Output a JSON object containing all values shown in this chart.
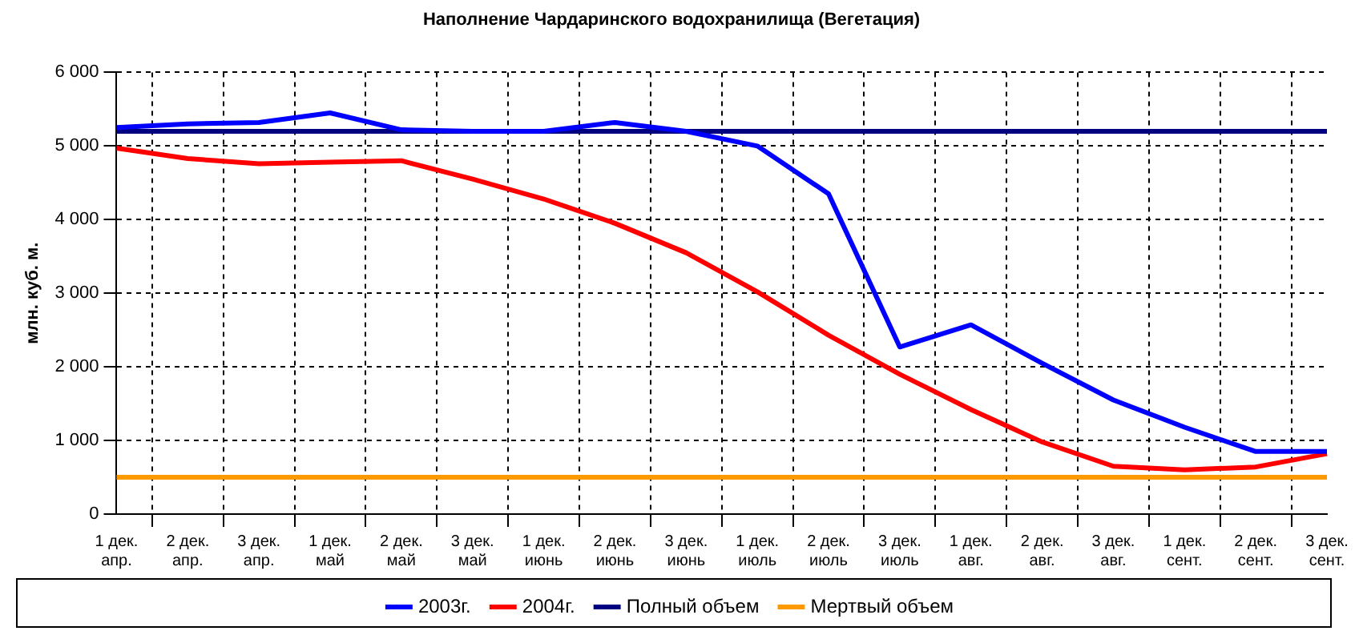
{
  "chart_data": {
    "type": "line",
    "title": "Наполнение Чардаринского водохранилища (Вегетация)",
    "ylabel": "млн. куб. м.",
    "categories": [
      "1 дек.\nапр.",
      "2 дек.\nапр.",
      "3 дек.\nапр.",
      "1 дек.\nмай",
      "2 дек.\nмай",
      "3 дек.\nмай",
      "1 дек.\nиюнь",
      "2 дек.\nиюнь",
      "3 дек.\nиюнь",
      "1 дек.\nиюль",
      "2 дек.\nиюль",
      "3 дек.\nиюль",
      "1 дек.\nавг.",
      "2 дек.\nавг.",
      "3 дек.\nавг.",
      "1 дек.\nсент.",
      "2 дек.\nсент.",
      "3 дек.\nсент."
    ],
    "series": [
      {
        "name": "2003г.",
        "color": "#0000ff",
        "values": [
          5250,
          5300,
          5320,
          5450,
          5220,
          5200,
          5200,
          5320,
          5200,
          5000,
          4350,
          2270,
          2570,
          2050,
          1550,
          1180,
          850,
          850
        ]
      },
      {
        "name": "2004г.",
        "color": "#ff0000",
        "values": [
          4970,
          4830,
          4760,
          4780,
          4800,
          4550,
          4280,
          3950,
          3550,
          3020,
          2430,
          1900,
          1420,
          980,
          650,
          600,
          640,
          820
        ]
      },
      {
        "name": "Полный объем",
        "color": "#000080",
        "values": [
          5200,
          5200,
          5200,
          5200,
          5200,
          5200,
          5200,
          5200,
          5200,
          5200,
          5200,
          5200,
          5200,
          5200,
          5200,
          5200,
          5200,
          5200
        ]
      },
      {
        "name": "Мертвый объем",
        "color": "#ff9900",
        "values": [
          500,
          500,
          500,
          500,
          500,
          500,
          500,
          500,
          500,
          500,
          500,
          500,
          500,
          500,
          500,
          500,
          500,
          500
        ]
      }
    ],
    "ylim": [
      0,
      6000
    ],
    "yticks": [
      0,
      1000,
      2000,
      3000,
      4000,
      5000,
      6000
    ],
    "grid": true,
    "legend": "bottom",
    "marker": "none",
    "line_style": "solid"
  }
}
